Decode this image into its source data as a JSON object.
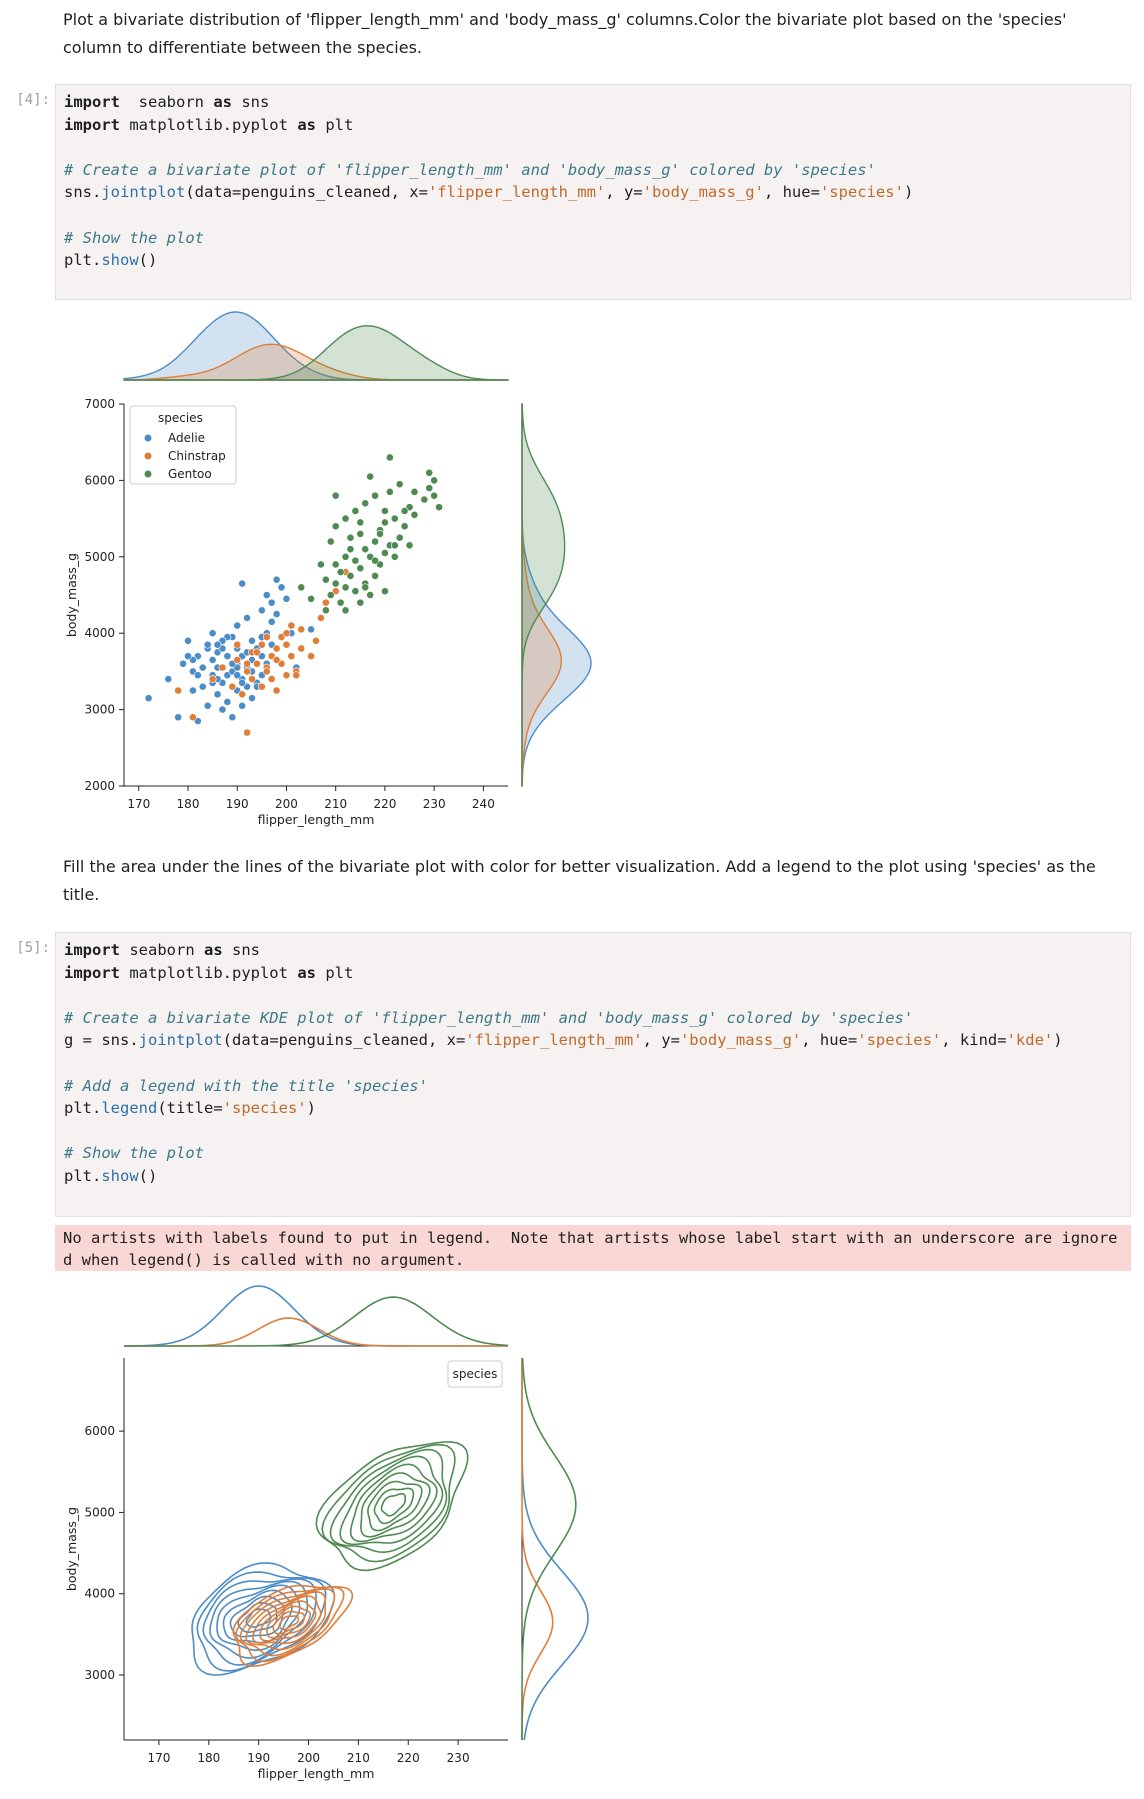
{
  "markdown1": "Plot a bivariate distribution of 'flipper_length_mm' and 'body_mass_g' columns.Color the bivariate plot based on the 'species' column to differentiate between the species.",
  "markdown2": "Fill the area under the lines of the bivariate plot with color for better visualization. Add a legend to the plot using 'species' as the title.",
  "cell4": {
    "prompt": "[4]:",
    "code": [
      [
        [
          "kw",
          "import"
        ],
        [
          "",
          "  seaborn "
        ],
        [
          "kw",
          "as"
        ],
        [
          "",
          " sns"
        ]
      ],
      [
        [
          "kw",
          "import"
        ],
        [
          "",
          " matplotlib.pyplot "
        ],
        [
          "kw",
          "as"
        ],
        [
          "",
          " plt"
        ]
      ],
      [],
      [
        [
          "cm",
          "# Create a bivariate plot of 'flipper_length_mm' and 'body_mass_g' colored by 'species'"
        ]
      ],
      [
        [
          "",
          "sns."
        ],
        [
          "fn",
          "jointplot"
        ],
        [
          "",
          "(data=penguins_cleaned, x="
        ],
        [
          "st",
          "'flipper_length_mm'"
        ],
        [
          "",
          ", y="
        ],
        [
          "st",
          "'body_mass_g'"
        ],
        [
          "",
          ", hue="
        ],
        [
          "st",
          "'species'"
        ],
        [
          "",
          ")"
        ]
      ],
      [],
      [
        [
          "cm",
          "# Show the plot"
        ]
      ],
      [
        [
          "",
          "plt."
        ],
        [
          "fn",
          "show"
        ],
        [
          "",
          "()"
        ]
      ]
    ]
  },
  "cell5": {
    "prompt": "[5]:",
    "code": [
      [
        [
          "kw",
          "import"
        ],
        [
          "",
          " seaborn "
        ],
        [
          "kw",
          "as"
        ],
        [
          "",
          " sns"
        ]
      ],
      [
        [
          "kw",
          "import"
        ],
        [
          "",
          " matplotlib.pyplot "
        ],
        [
          "kw",
          "as"
        ],
        [
          "",
          " plt"
        ]
      ],
      [],
      [
        [
          "cm",
          "# Create a bivariate KDE plot of 'flipper_length_mm' and 'body_mass_g' colored by 'species'"
        ]
      ],
      [
        [
          "",
          "g = sns."
        ],
        [
          "fn",
          "jointplot"
        ],
        [
          "",
          "(data=penguins_cleaned, x="
        ],
        [
          "st",
          "'flipper_length_mm'"
        ],
        [
          "",
          ", y="
        ],
        [
          "st",
          "'body_mass_g'"
        ],
        [
          "",
          ", hue="
        ],
        [
          "st",
          "'species'"
        ],
        [
          "",
          ", kind="
        ],
        [
          "st",
          "'kde'"
        ],
        [
          "",
          ")"
        ]
      ],
      [],
      [
        [
          "cm",
          "# Add a legend with the title 'species'"
        ]
      ],
      [
        [
          "",
          "plt."
        ],
        [
          "fn",
          "legend"
        ],
        [
          "",
          "(title="
        ],
        [
          "st",
          "'species'"
        ],
        [
          "",
          ")"
        ]
      ],
      [],
      [
        [
          "cm",
          "# Show the plot"
        ]
      ],
      [
        [
          "",
          "plt."
        ],
        [
          "fn",
          "show"
        ],
        [
          "",
          "()"
        ]
      ]
    ],
    "stderr": "No artists with labels found to put in legend.  Note that artists whose label start with an underscore are ignored when legend() is called with no argument."
  },
  "colors": {
    "Adelie": "#4c8cc7",
    "Chinstrap": "#e07e39",
    "Gentoo": "#4e8a52"
  },
  "chart_data": [
    {
      "type": "scatter",
      "xlabel": "flipper_length_mm",
      "ylabel": "body_mass_g",
      "xticks": [
        170,
        180,
        190,
        200,
        210,
        220,
        230,
        240
      ],
      "yticks": [
        2000,
        3000,
        4000,
        5000,
        6000,
        7000
      ],
      "xlim": [
        167,
        245
      ],
      "ylim": [
        2000,
        7000
      ],
      "legend_title": "species",
      "legend_position": "top-left",
      "species": [
        "Adelie",
        "Chinstrap",
        "Gentoo"
      ],
      "series": [
        {
          "name": "Adelie",
          "x": [
            172,
            176,
            178,
            179,
            180,
            181,
            181,
            182,
            182,
            183,
            183,
            184,
            184,
            185,
            185,
            185,
            186,
            186,
            186,
            187,
            187,
            187,
            188,
            188,
            188,
            189,
            189,
            189,
            190,
            190,
            190,
            190,
            191,
            191,
            191,
            191,
            192,
            192,
            192,
            193,
            193,
            193,
            194,
            194,
            195,
            195,
            195,
            196,
            196,
            197,
            197,
            198,
            199,
            200,
            201,
            202,
            203,
            205,
            181,
            184,
            186,
            188,
            190,
            192,
            194,
            185,
            187,
            189,
            191,
            193,
            195,
            197,
            180,
            182,
            186,
            190,
            194,
            196,
            198
          ],
          "y": [
            3150,
            3400,
            2900,
            3600,
            3900,
            3250,
            3500,
            2850,
            3700,
            3300,
            3550,
            3050,
            3800,
            3450,
            3650,
            4000,
            3200,
            3550,
            3750,
            3000,
            3350,
            3800,
            3100,
            3450,
            3700,
            2900,
            3500,
            3950,
            3250,
            3600,
            3800,
            4100,
            3050,
            3400,
            3700,
            4650,
            3300,
            3550,
            4200,
            3150,
            3500,
            3900,
            3350,
            3800,
            3450,
            3700,
            4300,
            3600,
            4000,
            3850,
            4400,
            4250,
            4600,
            4450,
            4000,
            3550,
            3800,
            4050,
            3650,
            3850,
            3400,
            3950,
            3550,
            3750,
            3600,
            3350,
            3900,
            3600,
            3350,
            3650,
            3950,
            4150,
            3700,
            3450,
            3850,
            3450,
            3300,
            4500,
            4700
          ]
        },
        {
          "name": "Chinstrap",
          "x": [
            178,
            181,
            185,
            187,
            189,
            190,
            190,
            191,
            192,
            192,
            193,
            193,
            194,
            195,
            195,
            196,
            196,
            197,
            197,
            198,
            198,
            199,
            199,
            200,
            200,
            201,
            201,
            202,
            203,
            203,
            205,
            206,
            207,
            208,
            210,
            212,
            192,
            194,
            196,
            198,
            200,
            202
          ],
          "y": [
            3250,
            2900,
            3400,
            3550,
            3300,
            3650,
            3850,
            3200,
            3500,
            2700,
            3400,
            3750,
            3600,
            3300,
            3850,
            3550,
            3950,
            3400,
            3700,
            3250,
            3800,
            3600,
            3950,
            3450,
            4000,
            3700,
            4100,
            3500,
            3800,
            4050,
            3700,
            3900,
            4200,
            4400,
            4550,
            4800,
            3600,
            3750,
            3500,
            3650,
            3850,
            3450
          ]
        },
        {
          "name": "Gentoo",
          "x": [
            203,
            205,
            207,
            208,
            208,
            209,
            209,
            210,
            210,
            210,
            211,
            211,
            212,
            212,
            212,
            213,
            213,
            214,
            214,
            214,
            215,
            215,
            215,
            216,
            216,
            216,
            217,
            217,
            218,
            218,
            218,
            219,
            219,
            220,
            220,
            220,
            221,
            221,
            222,
            222,
            223,
            223,
            224,
            225,
            225,
            226,
            228,
            229,
            230,
            230,
            231,
            215,
            217,
            219,
            221,
            210,
            212,
            213,
            216,
            218,
            220,
            222,
            224,
            226,
            229
          ],
          "y": [
            4600,
            4450,
            4900,
            4300,
            4700,
            4500,
            5200,
            4650,
            4900,
            5400,
            4400,
            4800,
            4600,
            5000,
            5500,
            4750,
            5250,
            4550,
            4950,
            5600,
            4400,
            4850,
            5300,
            4650,
            5100,
            5700,
            4500,
            5000,
            4750,
            5200,
            5800,
            4900,
            5350,
            4550,
            5050,
            5600,
            5150,
            5850,
            5000,
            5500,
            5250,
            5950,
            5400,
            5150,
            5650,
            5550,
            5750,
            5900,
            6000,
            5800,
            5650,
            5450,
            6050,
            5300,
            6300,
            5800,
            4300,
            5100,
            4600,
            4950,
            5450,
            5150,
            5600,
            5850,
            6100
          ]
        }
      ],
      "marginal_x": "kde (filled) of flipper_length_mm per species",
      "marginal_y": "kde (filled) of body_mass_g per species"
    },
    {
      "type": "kde_contour",
      "xlabel": "flipper_length_mm",
      "ylabel": "body_mass_g",
      "xticks": [
        170,
        180,
        190,
        200,
        210,
        220,
        230
      ],
      "yticks": [
        3000,
        4000,
        5000,
        6000
      ],
      "xlim": [
        163,
        240
      ],
      "ylim": [
        2200,
        6900
      ],
      "legend_title": "species",
      "legend_position": "top-right",
      "species": [
        "Adelie",
        "Chinstrap",
        "Gentoo"
      ],
      "contours": [
        {
          "name": "Adelie",
          "center": [
            190,
            3700
          ],
          "spread": [
            12,
            1050
          ],
          "tilt": 0.45,
          "levels": 9
        },
        {
          "name": "Chinstrap",
          "center": [
            196,
            3650
          ],
          "spread": [
            10,
            700
          ],
          "tilt": 0.5,
          "levels": 9
        },
        {
          "name": "Gentoo",
          "center": [
            217,
            5100
          ],
          "spread": [
            13,
            1100
          ],
          "tilt": 0.75,
          "levels": 9
        }
      ],
      "marginal_x": "kde (lines) of flipper_length_mm per species",
      "marginal_y": "kde (lines) of body_mass_g per species"
    }
  ]
}
